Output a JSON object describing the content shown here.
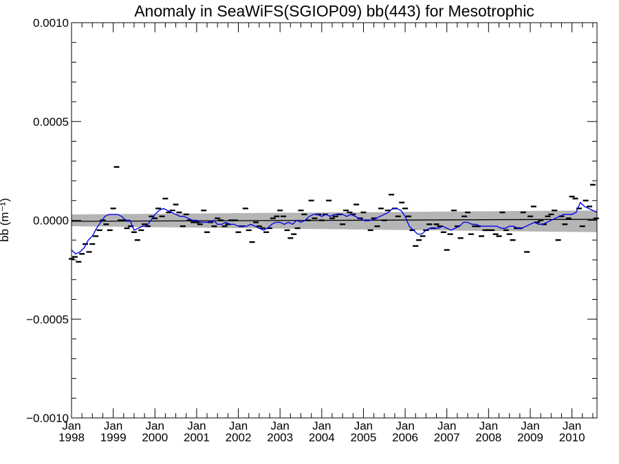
{
  "chart_data": {
    "type": "scatter",
    "title": "Anomaly in SeaWiFS(SGIOP09) bb(443) for Mesotrophic",
    "ylabel": "bb (m⁻¹)",
    "xlabel": "",
    "xlim": [
      1998.0,
      2010.6
    ],
    "ylim": [
      -0.001,
      0.001
    ],
    "grid": false,
    "y_ticks": [
      {
        "value": 0.001,
        "label": "0.0010"
      },
      {
        "value": 0.0005,
        "label": "0.0005"
      },
      {
        "value": 0.0,
        "label": "0.0000"
      },
      {
        "value": -0.0005,
        "label": "−0.0005"
      },
      {
        "value": -0.001,
        "label": "−0.0010"
      }
    ],
    "x_ticks": [
      {
        "value": 1998,
        "month": "Jan",
        "year": "1998"
      },
      {
        "value": 1999,
        "month": "Jan",
        "year": "1999"
      },
      {
        "value": 2000,
        "month": "Jan",
        "year": "2000"
      },
      {
        "value": 2001,
        "month": "Jan",
        "year": "2001"
      },
      {
        "value": 2002,
        "month": "Jan",
        "year": "2002"
      },
      {
        "value": 2003,
        "month": "Jan",
        "year": "2003"
      },
      {
        "value": 2004,
        "month": "Jan",
        "year": "2004"
      },
      {
        "value": 2005,
        "month": "Jan",
        "year": "2005"
      },
      {
        "value": 2006,
        "month": "Jan",
        "year": "2006"
      },
      {
        "value": 2007,
        "month": "Jan",
        "year": "2007"
      },
      {
        "value": 2008,
        "month": "Jan",
        "year": "2008"
      },
      {
        "value": 2009,
        "month": "Jan",
        "year": "2009"
      },
      {
        "value": 2010,
        "month": "Jan",
        "year": "2010"
      }
    ],
    "monthly_anomaly": [
      [
        1998.0,
        -0.000195
      ],
      [
        1998.08,
        -0.000185
      ],
      [
        1998.17,
        -0.00021
      ],
      [
        1998.25,
        -0.00017
      ],
      [
        1998.33,
        -0.00012
      ],
      [
        1998.42,
        -0.00016
      ],
      [
        1998.5,
        -0.00012
      ],
      [
        1998.58,
        -8e-05
      ],
      [
        1998.67,
        -5e-05
      ],
      [
        1998.75,
        0.0
      ],
      [
        1998.83,
        -2e-05
      ],
      [
        1998.92,
        -5e-05
      ],
      [
        1999.0,
        6e-05
      ],
      [
        1999.08,
        0.00027
      ],
      [
        1999.17,
        0.0
      ],
      [
        1999.25,
        0.0
      ],
      [
        1999.33,
        -4e-05
      ],
      [
        1999.42,
        -3e-05
      ],
      [
        1999.5,
        -6e-05
      ],
      [
        1999.58,
        -0.0001
      ],
      [
        1999.67,
        -5e-05
      ],
      [
        1999.75,
        -2e-05
      ],
      [
        1999.83,
        -3e-05
      ],
      [
        1999.92,
        2e-05
      ],
      [
        2000.0,
        1e-05
      ],
      [
        2000.08,
        6e-05
      ],
      [
        2000.17,
        2e-05
      ],
      [
        2000.25,
        0.00011
      ],
      [
        2000.33,
        4e-05
      ],
      [
        2000.42,
        5e-05
      ],
      [
        2000.5,
        8e-05
      ],
      [
        2000.58,
        4e-05
      ],
      [
        2000.67,
        -3e-05
      ],
      [
        2000.75,
        3e-05
      ],
      [
        2000.83,
        0.0
      ],
      [
        2000.92,
        -1e-05
      ],
      [
        2001.0,
        -1e-05
      ],
      [
        2001.08,
        -2e-05
      ],
      [
        2001.17,
        5e-05
      ],
      [
        2001.25,
        -6e-05
      ],
      [
        2001.33,
        -1e-05
      ],
      [
        2001.42,
        -3e-05
      ],
      [
        2001.5,
        1e-05
      ],
      [
        2001.58,
        0.0
      ],
      [
        2001.67,
        -3e-05
      ],
      [
        2001.75,
        -2e-05
      ],
      [
        2001.83,
        0.0
      ],
      [
        2001.92,
        0.0
      ],
      [
        2002.0,
        -6e-05
      ],
      [
        2002.08,
        -3e-05
      ],
      [
        2002.17,
        6e-05
      ],
      [
        2002.25,
        -5e-05
      ],
      [
        2002.33,
        -0.00011
      ],
      [
        2002.42,
        -1e-05
      ],
      [
        2002.5,
        -3e-05
      ],
      [
        2002.58,
        -4e-05
      ],
      [
        2002.67,
        -6e-05
      ],
      [
        2002.75,
        -4e-05
      ],
      [
        2002.83,
        1e-05
      ],
      [
        2002.92,
        2e-05
      ],
      [
        2003.0,
        5e-05
      ],
      [
        2003.08,
        2e-05
      ],
      [
        2003.17,
        -5e-05
      ],
      [
        2003.25,
        -9e-05
      ],
      [
        2003.33,
        -7e-05
      ],
      [
        2003.42,
        -4e-05
      ],
      [
        2003.5,
        5e-05
      ],
      [
        2003.58,
        3e-05
      ],
      [
        2003.67,
        0.0
      ],
      [
        2003.75,
        0.0001
      ],
      [
        2003.83,
        1e-05
      ],
      [
        2003.92,
        3e-05
      ],
      [
        2004.0,
        0.0
      ],
      [
        2004.08,
        3e-05
      ],
      [
        2004.17,
        0.0001
      ],
      [
        2004.25,
        1e-05
      ],
      [
        2004.33,
        2e-05
      ],
      [
        2004.42,
        3e-05
      ],
      [
        2004.5,
        -2e-05
      ],
      [
        2004.58,
        5e-05
      ],
      [
        2004.67,
        4e-05
      ],
      [
        2004.75,
        3e-05
      ],
      [
        2004.83,
        8e-05
      ],
      [
        2004.92,
        1e-05
      ],
      [
        2005.0,
        4e-05
      ],
      [
        2005.08,
        0.0
      ],
      [
        2005.17,
        -5e-05
      ],
      [
        2005.25,
        1e-05
      ],
      [
        2005.33,
        -3e-05
      ],
      [
        2005.42,
        6e-05
      ],
      [
        2005.5,
        0.0
      ],
      [
        2005.58,
        5e-05
      ],
      [
        2005.67,
        0.00013
      ],
      [
        2005.75,
        6e-05
      ],
      [
        2005.83,
        2e-05
      ],
      [
        2005.92,
        9e-05
      ],
      [
        2006.0,
        6e-05
      ],
      [
        2006.08,
        2e-05
      ],
      [
        2006.17,
        -5e-05
      ],
      [
        2006.25,
        -0.00013
      ],
      [
        2006.33,
        -0.0001
      ],
      [
        2006.42,
        -8e-05
      ],
      [
        2006.5,
        -5e-05
      ],
      [
        2006.58,
        -2e-05
      ],
      [
        2006.67,
        -4e-05
      ],
      [
        2006.75,
        -2e-05
      ],
      [
        2006.83,
        -3e-05
      ],
      [
        2006.92,
        -6e-05
      ],
      [
        2007.0,
        -0.00015
      ],
      [
        2007.08,
        -7e-05
      ],
      [
        2007.17,
        5e-05
      ],
      [
        2007.25,
        -3e-05
      ],
      [
        2007.33,
        -9e-05
      ],
      [
        2007.42,
        2e-05
      ],
      [
        2007.5,
        4e-05
      ],
      [
        2007.58,
        -7e-05
      ],
      [
        2007.67,
        -3e-05
      ],
      [
        2007.75,
        -3e-05
      ],
      [
        2007.83,
        -8e-05
      ],
      [
        2007.92,
        -5e-05
      ],
      [
        2008.0,
        -5e-05
      ],
      [
        2008.08,
        -5e-05
      ],
      [
        2008.17,
        -7e-05
      ],
      [
        2008.25,
        -8e-05
      ],
      [
        2008.33,
        4e-05
      ],
      [
        2008.42,
        -5e-05
      ],
      [
        2008.5,
        -7e-05
      ],
      [
        2008.58,
        -0.0001
      ],
      [
        2008.67,
        -4e-05
      ],
      [
        2008.75,
        -4e-05
      ],
      [
        2008.83,
        4e-05
      ],
      [
        2008.92,
        -0.00016
      ],
      [
        2009.0,
        2e-05
      ],
      [
        2009.08,
        7e-05
      ],
      [
        2009.17,
        -1e-05
      ],
      [
        2009.25,
        0.0
      ],
      [
        2009.33,
        -2e-05
      ],
      [
        2009.42,
        2e-05
      ],
      [
        2009.5,
        3e-05
      ],
      [
        2009.58,
        5e-05
      ],
      [
        2009.67,
        -0.0001
      ],
      [
        2009.75,
        2e-05
      ],
      [
        2009.83,
        -2e-05
      ],
      [
        2009.92,
        1e-05
      ],
      [
        2010.0,
        0.00012
      ],
      [
        2010.08,
        0.00011
      ],
      [
        2010.17,
        6e-05
      ],
      [
        2010.25,
        -3e-05
      ],
      [
        2010.33,
        0.0001
      ],
      [
        2010.42,
        7e-05
      ],
      [
        2010.5,
        0.00018
      ],
      [
        2010.58,
        1e-05
      ]
    ],
    "smoothed_series": {
      "color": "#0000ee",
      "values": [
        [
          1998.0,
          -0.00015
        ],
        [
          1998.1,
          -0.00017
        ],
        [
          1998.2,
          -0.00016
        ],
        [
          1998.3,
          -0.00014
        ],
        [
          1998.4,
          -0.0001
        ],
        [
          1998.5,
          -8e-05
        ],
        [
          1998.6,
          -4e-05
        ],
        [
          1998.7,
          -1e-05
        ],
        [
          1998.8,
          2e-05
        ],
        [
          1998.9,
          3e-05
        ],
        [
          1999.0,
          3e-05
        ],
        [
          1999.1,
          3e-05
        ],
        [
          1999.2,
          2e-05
        ],
        [
          1999.3,
          0.0
        ],
        [
          1999.4,
          0.0
        ],
        [
          1999.5,
          -5e-05
        ],
        [
          1999.6,
          -4e-05
        ],
        [
          1999.7,
          -3e-05
        ],
        [
          1999.8,
          -3e-05
        ],
        [
          1999.9,
          0.0
        ],
        [
          2000.0,
          3e-05
        ],
        [
          2000.1,
          5e-05
        ],
        [
          2000.2,
          6e-05
        ],
        [
          2000.3,
          5e-05
        ],
        [
          2000.4,
          4e-05
        ],
        [
          2000.5,
          3e-05
        ],
        [
          2000.6,
          2e-05
        ],
        [
          2000.7,
          2e-05
        ],
        [
          2000.8,
          1e-05
        ],
        [
          2000.9,
          0.0
        ],
        [
          2001.0,
          0.0
        ],
        [
          2001.1,
          -1e-05
        ],
        [
          2001.2,
          -1e-05
        ],
        [
          2001.3,
          -1e-05
        ],
        [
          2001.4,
          0.0
        ],
        [
          2001.5,
          -2e-05
        ],
        [
          2001.6,
          -2e-05
        ],
        [
          2001.7,
          -1e-05
        ],
        [
          2001.8,
          -2e-05
        ],
        [
          2001.9,
          -2e-05
        ],
        [
          2002.0,
          -3e-05
        ],
        [
          2002.1,
          -3e-05
        ],
        [
          2002.2,
          -3e-05
        ],
        [
          2002.3,
          -2e-05
        ],
        [
          2002.4,
          -3e-05
        ],
        [
          2002.5,
          -4e-05
        ],
        [
          2002.6,
          -5e-05
        ],
        [
          2002.7,
          -4e-05
        ],
        [
          2002.8,
          -2e-05
        ],
        [
          2002.9,
          -1e-05
        ],
        [
          2003.0,
          -1e-05
        ],
        [
          2003.1,
          -2e-05
        ],
        [
          2003.2,
          -1e-05
        ],
        [
          2003.3,
          -2e-05
        ],
        [
          2003.4,
          0.0
        ],
        [
          2003.5,
          -1e-05
        ],
        [
          2003.6,
          0.0
        ],
        [
          2003.7,
          2e-05
        ],
        [
          2003.8,
          3e-05
        ],
        [
          2003.9,
          3e-05
        ],
        [
          2004.0,
          2e-05
        ],
        [
          2004.1,
          3e-05
        ],
        [
          2004.2,
          2e-05
        ],
        [
          2004.3,
          3e-05
        ],
        [
          2004.4,
          3e-05
        ],
        [
          2004.5,
          3e-05
        ],
        [
          2004.6,
          2e-05
        ],
        [
          2004.7,
          3e-05
        ],
        [
          2004.8,
          2e-05
        ],
        [
          2004.9,
          1e-05
        ],
        [
          2005.0,
          0.0
        ],
        [
          2005.1,
          0.0
        ],
        [
          2005.2,
          0.0
        ],
        [
          2005.3,
          1e-05
        ],
        [
          2005.4,
          2e-05
        ],
        [
          2005.5,
          3e-05
        ],
        [
          2005.6,
          4e-05
        ],
        [
          2005.7,
          6e-05
        ],
        [
          2005.8,
          6e-05
        ],
        [
          2005.9,
          5e-05
        ],
        [
          2006.0,
          2e-05
        ],
        [
          2006.1,
          -3e-05
        ],
        [
          2006.2,
          -5e-05
        ],
        [
          2006.3,
          -7e-05
        ],
        [
          2006.4,
          -7e-05
        ],
        [
          2006.5,
          -5e-05
        ],
        [
          2006.6,
          -4e-05
        ],
        [
          2006.7,
          -4e-05
        ],
        [
          2006.8,
          -4e-05
        ],
        [
          2006.9,
          -3e-05
        ],
        [
          2007.0,
          -4e-05
        ],
        [
          2007.1,
          -5e-05
        ],
        [
          2007.2,
          -4e-05
        ],
        [
          2007.3,
          -3e-05
        ],
        [
          2007.4,
          -1e-05
        ],
        [
          2007.5,
          -1e-05
        ],
        [
          2007.6,
          -2e-05
        ],
        [
          2007.7,
          -2e-05
        ],
        [
          2007.8,
          -3e-05
        ],
        [
          2007.9,
          -3e-05
        ],
        [
          2008.0,
          -3e-05
        ],
        [
          2008.1,
          -3e-05
        ],
        [
          2008.2,
          -3e-05
        ],
        [
          2008.3,
          -4e-05
        ],
        [
          2008.4,
          -4e-05
        ],
        [
          2008.5,
          -3e-05
        ],
        [
          2008.6,
          -3e-05
        ],
        [
          2008.7,
          -4e-05
        ],
        [
          2008.8,
          -4e-05
        ],
        [
          2008.9,
          -3e-05
        ],
        [
          2009.0,
          -2e-05
        ],
        [
          2009.1,
          -1e-05
        ],
        [
          2009.2,
          -2e-05
        ],
        [
          2009.3,
          -2e-05
        ],
        [
          2009.4,
          -1e-05
        ],
        [
          2009.5,
          0.0
        ],
        [
          2009.6,
          1e-05
        ],
        [
          2009.7,
          2e-05
        ],
        [
          2009.8,
          3e-05
        ],
        [
          2009.9,
          3e-05
        ],
        [
          2010.0,
          3e-05
        ],
        [
          2010.1,
          4e-05
        ],
        [
          2010.2,
          9e-05
        ],
        [
          2010.3,
          7e-05
        ],
        [
          2010.4,
          6e-05
        ],
        [
          2010.5,
          5e-05
        ],
        [
          2010.6,
          4e-05
        ]
      ]
    },
    "trend_line": {
      "color": "#000000",
      "start": [
        1998.0,
        -5e-06
      ],
      "end": [
        2010.6,
        5e-06
      ]
    },
    "confidence_band": {
      "color": "#b5b5b5",
      "upper": [
        [
          1998.0,
          3e-05
        ],
        [
          2010.6,
          5e-05
        ]
      ],
      "lower": [
        [
          1998.0,
          -3e-05
        ],
        [
          2010.6,
          -6e-05
        ]
      ]
    }
  }
}
